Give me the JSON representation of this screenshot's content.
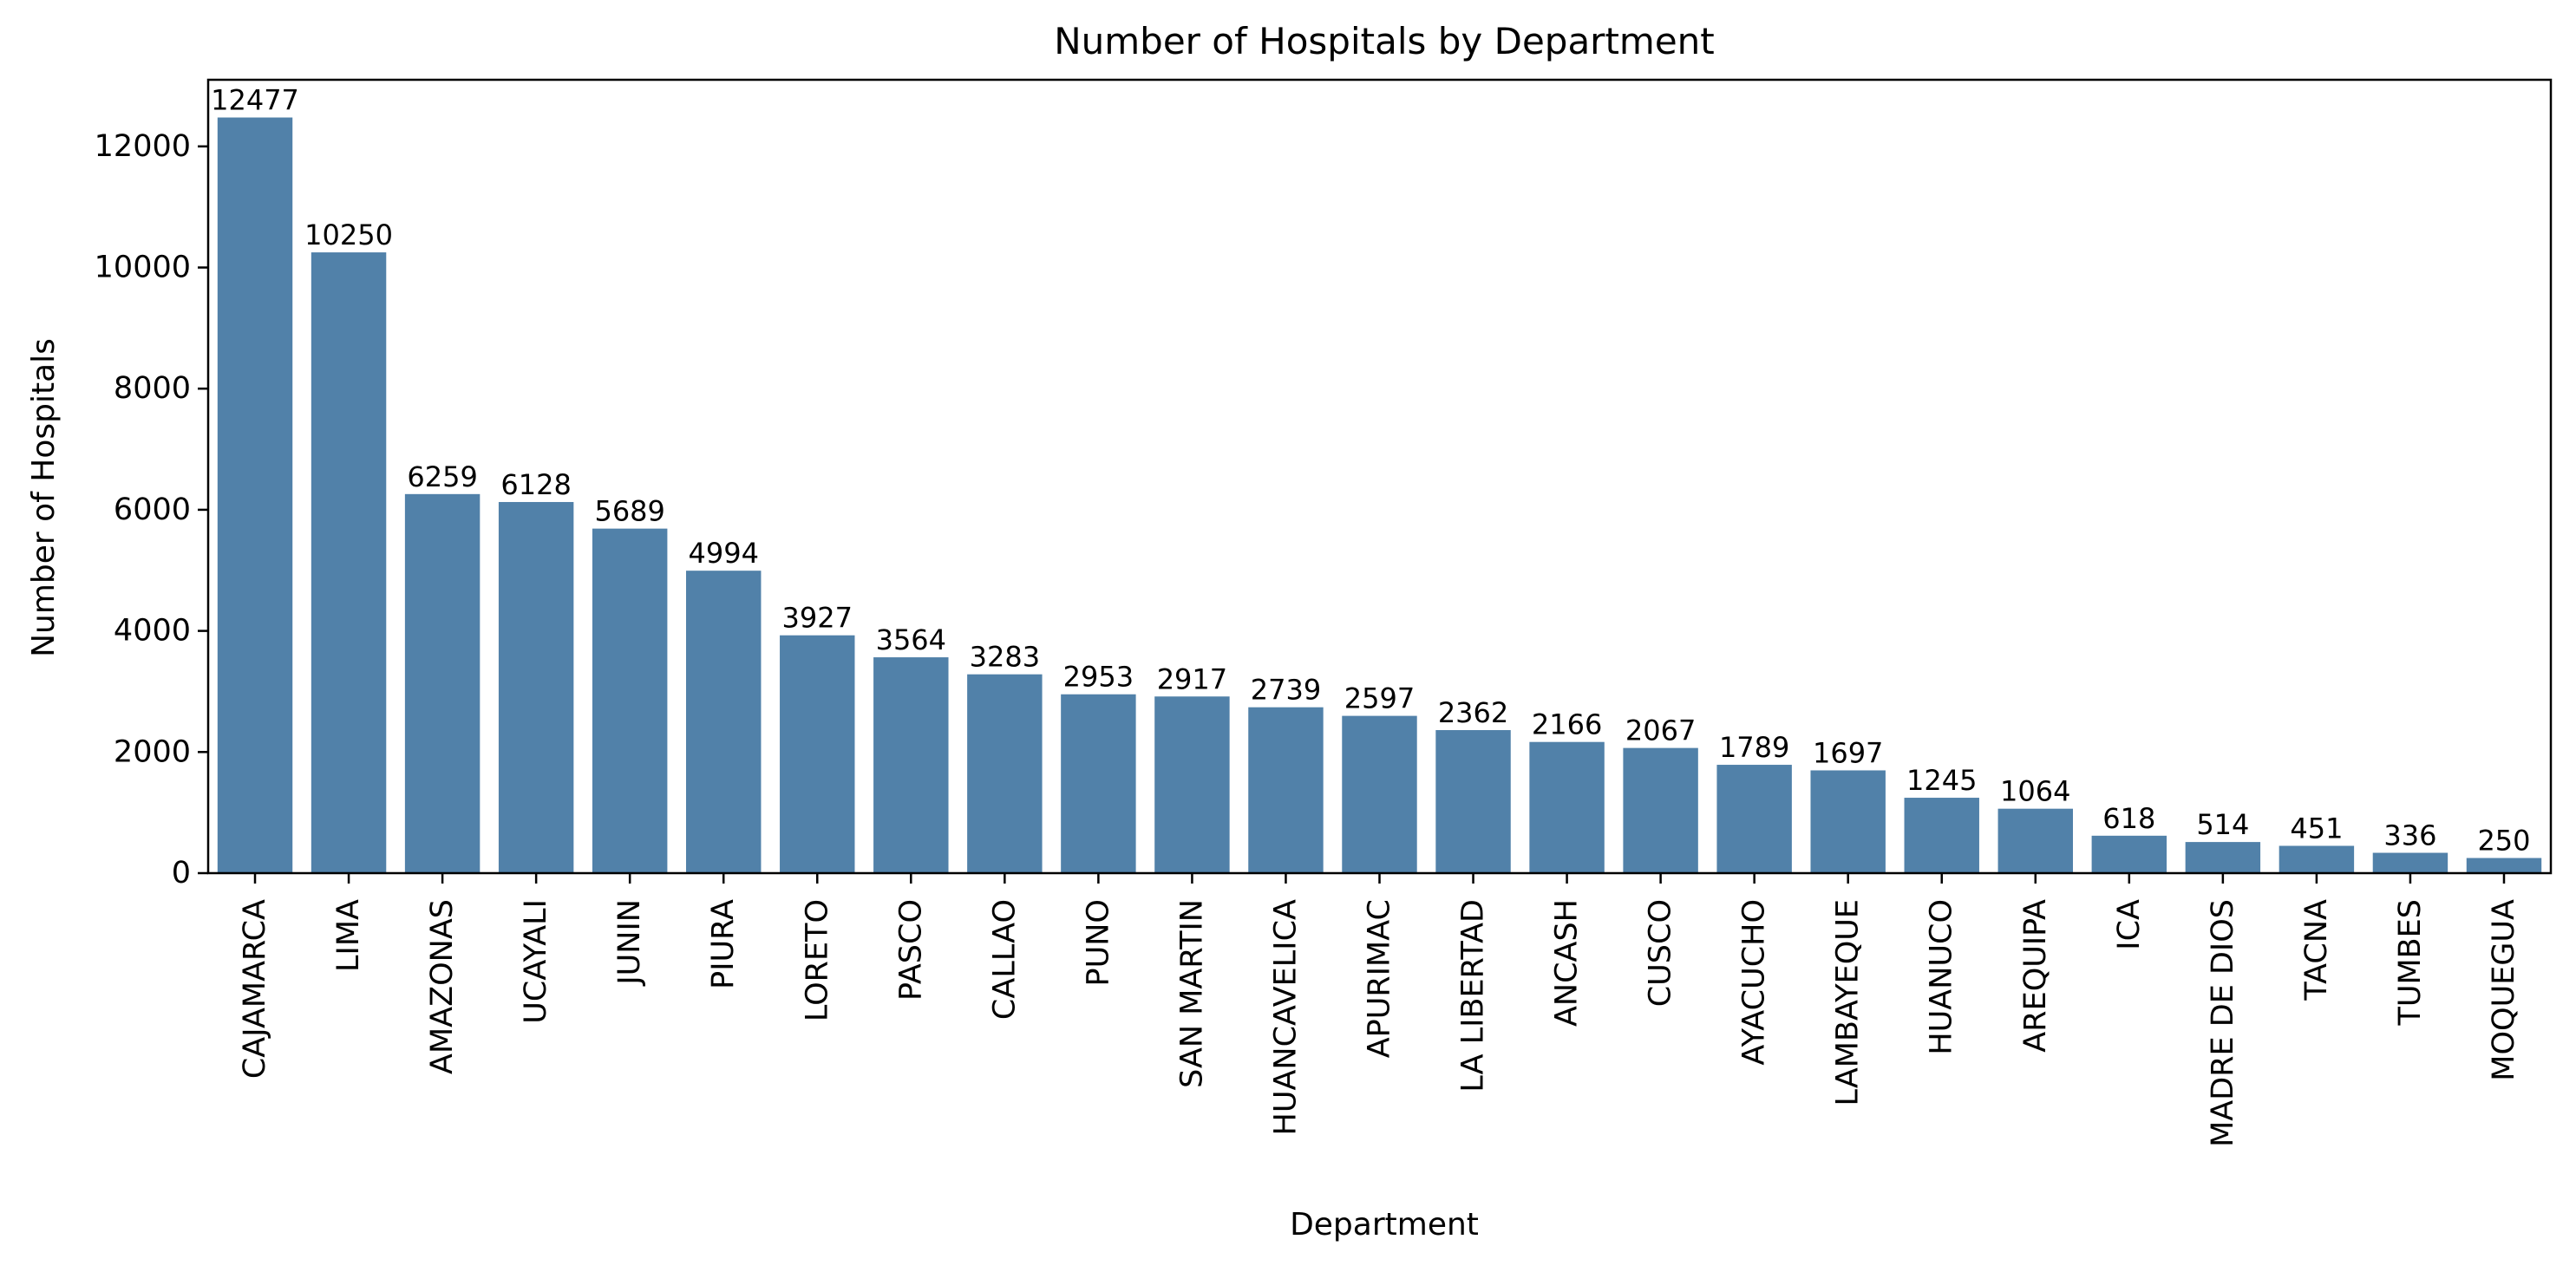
{
  "chart_data": {
    "type": "bar",
    "title": "Number of Hospitals by Department",
    "xlabel": "Department",
    "ylabel": "Number of Hospitals",
    "categories": [
      "CAJAMARCA",
      "LIMA",
      "AMAZONAS",
      "UCAYALI",
      "JUNIN",
      "PIURA",
      "LORETO",
      "PASCO",
      "CALLAO",
      "PUNO",
      "SAN MARTIN",
      "HUANCAVELICA",
      "APURIMAC",
      "LA LIBERTAD",
      "ANCASH",
      "CUSCO",
      "AYACUCHO",
      "LAMBAYEQUE",
      "HUANUCO",
      "AREQUIPA",
      "ICA",
      "MADRE DE DIOS",
      "TACNA",
      "TUMBES",
      "MOQUEGUA"
    ],
    "values": [
      12477,
      10250,
      6259,
      6128,
      5689,
      4994,
      3927,
      3564,
      3283,
      2953,
      2917,
      2739,
      2597,
      2362,
      2166,
      2067,
      1789,
      1697,
      1245,
      1064,
      618,
      514,
      451,
      336,
      250
    ],
    "data_labels": [
      "12477",
      "10250",
      "6259",
      "6128",
      "5689",
      "4994",
      "3927",
      "3564",
      "3283",
      "2953",
      "2917",
      "2739",
      "2597",
      "2362",
      "2166",
      "2067",
      "1789",
      "1697",
      "1245",
      "1064",
      "618",
      "514",
      "451",
      "336",
      "250"
    ],
    "ylim": [
      0,
      13100
    ],
    "yticks": [
      0,
      2000,
      4000,
      6000,
      8000,
      10000,
      12000
    ],
    "ytick_labels": [
      "0",
      "2000",
      "4000",
      "6000",
      "8000",
      "10000",
      "12000"
    ],
    "bar_color": "#5181a9",
    "grid": false,
    "legend": "none"
  }
}
